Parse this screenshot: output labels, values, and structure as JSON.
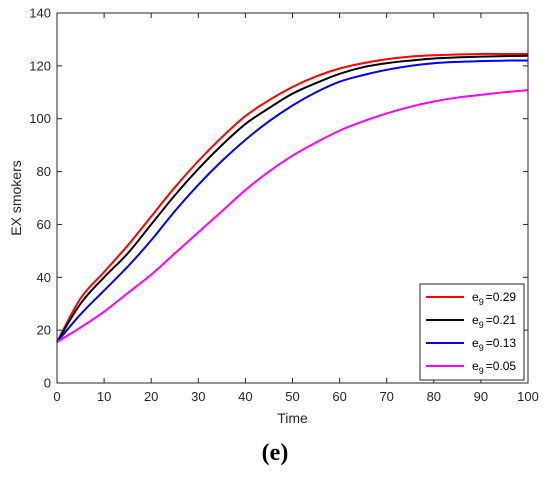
{
  "chart_data": {
    "type": "line",
    "xlabel": "Time",
    "ylabel": "EX smokers",
    "xlim": [
      0,
      100
    ],
    "ylim": [
      0,
      140
    ],
    "xticks": [
      0,
      10,
      20,
      30,
      40,
      50,
      60,
      70,
      80,
      90,
      100
    ],
    "yticks": [
      0,
      20,
      40,
      60,
      80,
      100,
      120,
      140
    ],
    "grid": false,
    "legend_position": "bottom-right",
    "x": [
      0,
      5,
      10,
      15,
      20,
      25,
      30,
      35,
      40,
      45,
      50,
      55,
      60,
      65,
      70,
      75,
      80,
      85,
      90,
      95,
      100
    ],
    "series": [
      {
        "legend_base": "e",
        "legend_sub": "9",
        "legend_value": "=0.29",
        "color": "#ff0000",
        "values": [
          15.5,
          32,
          42,
          52,
          63,
          74,
          84,
          93,
          101,
          107,
          112,
          116,
          119,
          121,
          122.5,
          123.5,
          124,
          124.3,
          124.5,
          124.5,
          124.5
        ]
      },
      {
        "legend_base": "e",
        "legend_sub": "9",
        "legend_value": "=0.21",
        "color": "#000000",
        "values": [
          15.5,
          30,
          40,
          49,
          60,
          71,
          81,
          90,
          98,
          104,
          109.5,
          113.5,
          117,
          119.5,
          121,
          122,
          122.8,
          123.2,
          123.5,
          123.7,
          123.8
        ]
      },
      {
        "legend_base": "e",
        "legend_sub": "9",
        "legend_value": "=0.13",
        "color": "#0000ff",
        "values": [
          15.5,
          26,
          35,
          44,
          54,
          65,
          75,
          84,
          92,
          99,
          105,
          110,
          114,
          116.5,
          118.5,
          120,
          121,
          121.5,
          121.8,
          122,
          122
        ]
      },
      {
        "legend_base": "e",
        "legend_sub": "9",
        "legend_value": "=0.05",
        "color": "#ff00ff",
        "values": [
          15.5,
          21,
          27,
          34,
          41,
          49,
          57,
          65,
          73,
          80,
          86,
          91,
          95.5,
          99,
          102,
          104.5,
          106.5,
          108,
          109,
          110,
          110.8
        ]
      }
    ]
  },
  "panel_label": "(e)"
}
